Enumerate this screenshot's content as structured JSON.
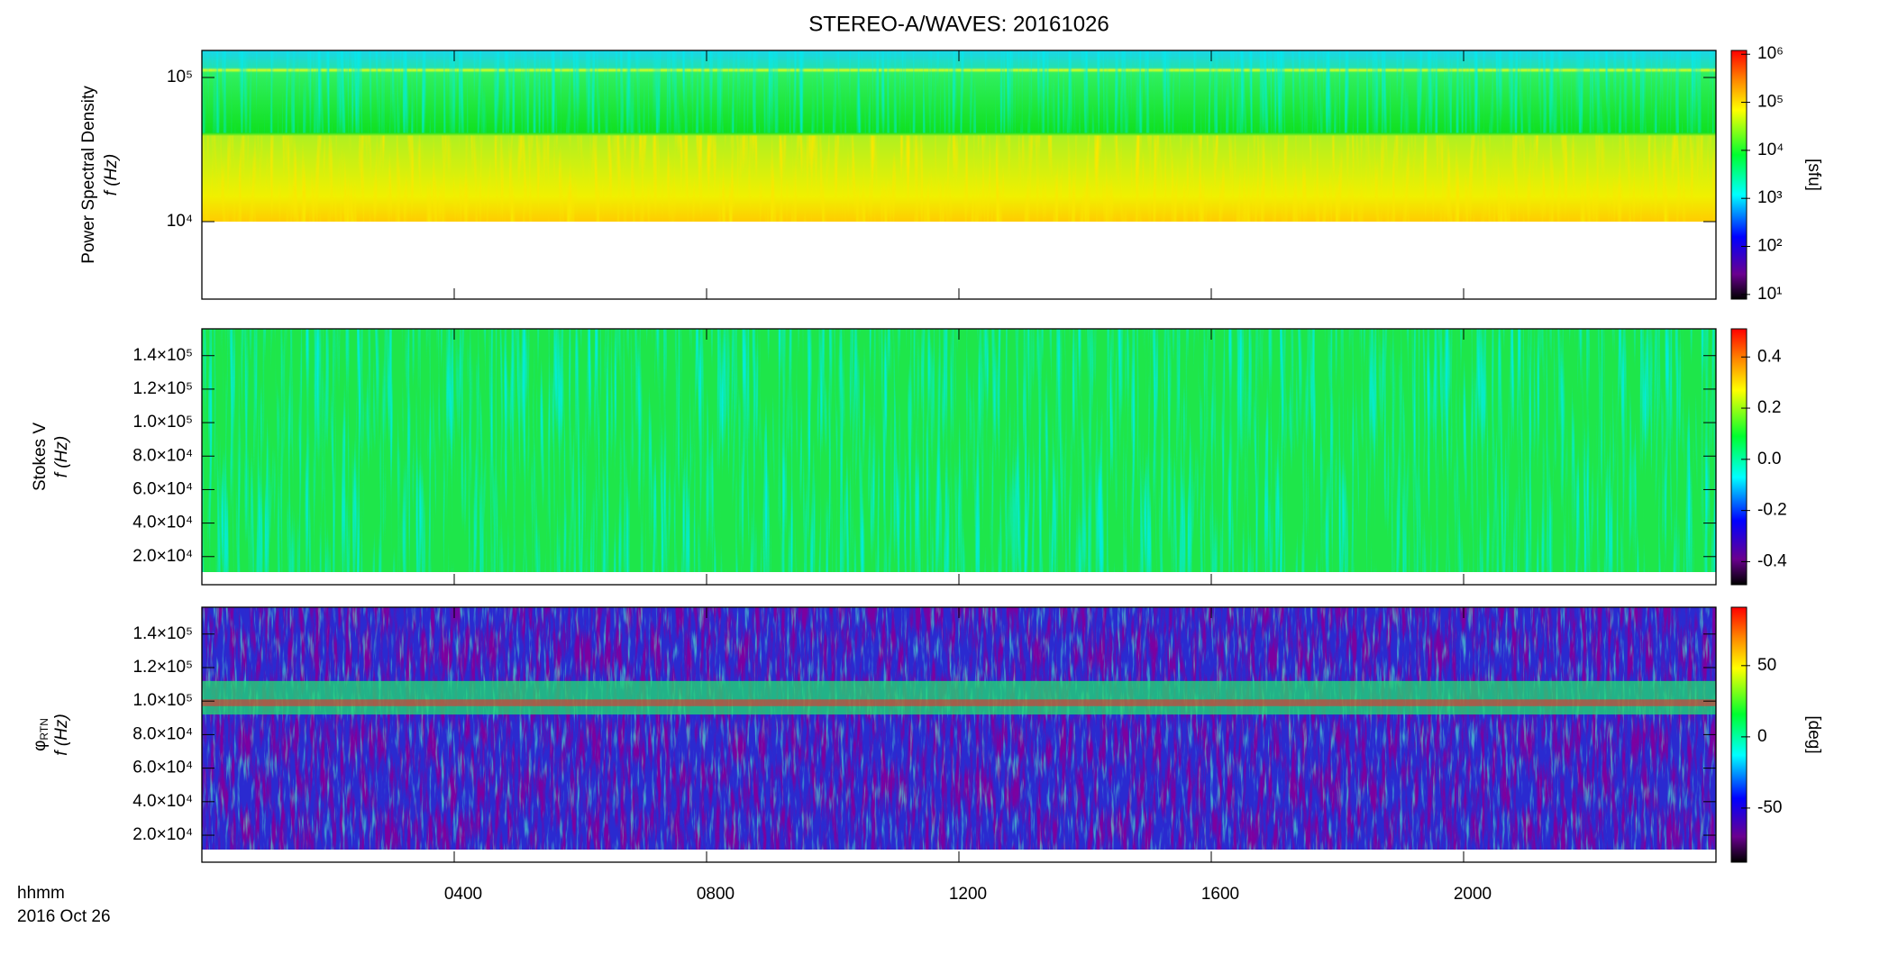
{
  "title": "STEREO-A/WAVES: 20161026",
  "xlabel": "hhmm",
  "xlabel2": "2016 Oct 26",
  "chart_data": [
    {
      "type": "heatmap",
      "ylabel": "Power Spectral Density",
      "ylabel2": "f (Hz)",
      "ylog": true,
      "ylim": [
        2900,
        154000
      ],
      "yticks": [
        {
          "value": 10000,
          "label": "10⁴"
        },
        {
          "value": 100000,
          "label": "10⁵"
        }
      ],
      "colorbar": {
        "log": true,
        "lim": [
          8,
          1200000
        ],
        "label": "[sfu]",
        "ticks": [
          {
            "value": 10,
            "label": "10¹"
          },
          {
            "value": 100,
            "label": "10²"
          },
          {
            "value": 1000,
            "label": "10³"
          },
          {
            "value": 10000,
            "label": "10⁴"
          },
          {
            "value": 100000,
            "label": "10⁵"
          },
          {
            "value": 1000000,
            "label": "10⁶"
          }
        ]
      }
    },
    {
      "type": "heatmap",
      "ylabel": "Stokes V",
      "ylabel2": "f (Hz)",
      "ylog": false,
      "ylim": [
        3200,
        156000
      ],
      "yticks": [
        {
          "value": 20000,
          "label": "2.0×10⁴"
        },
        {
          "value": 40000,
          "label": "4.0×10⁴"
        },
        {
          "value": 60000,
          "label": "6.0×10⁴"
        },
        {
          "value": 80000,
          "label": "8.0×10⁴"
        },
        {
          "value": 100000,
          "label": "1.0×10⁵"
        },
        {
          "value": 120000,
          "label": "1.2×10⁵"
        },
        {
          "value": 140000,
          "label": "1.4×10⁵"
        }
      ],
      "colorbar": {
        "log": false,
        "lim": [
          -0.49,
          0.51
        ],
        "ticks": [
          {
            "value": -0.4,
            "label": "-0.4"
          },
          {
            "value": -0.2,
            "label": "-0.2"
          },
          {
            "value": 0,
            "label": "0.0"
          },
          {
            "value": 0.2,
            "label": "0.2"
          },
          {
            "value": 0.4,
            "label": "0.4"
          }
        ]
      }
    },
    {
      "type": "heatmap",
      "ylabel": "φ",
      "ylabel_sub": "RTN",
      "ylabel2": "f (Hz)",
      "ylog": false,
      "ylim": [
        3900,
        156000
      ],
      "yticks": [
        {
          "value": 20000,
          "label": "2.0×10⁴"
        },
        {
          "value": 40000,
          "label": "4.0×10⁴"
        },
        {
          "value": 60000,
          "label": "6.0×10⁴"
        },
        {
          "value": 80000,
          "label": "8.0×10⁴"
        },
        {
          "value": 100000,
          "label": "1.0×10⁵"
        },
        {
          "value": 120000,
          "label": "1.2×10⁵"
        },
        {
          "value": 140000,
          "label": "1.4×10⁵"
        }
      ],
      "xlim": [
        0,
        24
      ],
      "xticks": [
        {
          "value": 4,
          "label": "0400"
        },
        {
          "value": 8,
          "label": "0800"
        },
        {
          "value": 12,
          "label": "1200"
        },
        {
          "value": 16,
          "label": "1600"
        },
        {
          "value": 20,
          "label": "2000"
        }
      ],
      "colorbar": {
        "log": false,
        "lim": [
          -88,
          91
        ],
        "label": "[deg]",
        "ticks": [
          -50,
          0,
          50
        ]
      }
    }
  ]
}
